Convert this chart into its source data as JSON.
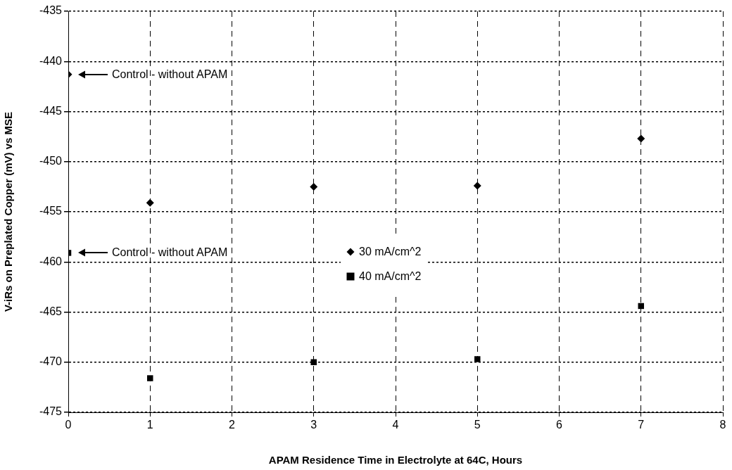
{
  "chart_data": {
    "type": "scatter",
    "xlabel": "APAM Residence Time in Electrolyte at 64C, Hours",
    "ylabel": "V-iRs on Preplated Copper (mV) vs MSE",
    "x": [
      0,
      1,
      3,
      5,
      7
    ],
    "series": [
      {
        "name": "30 mA/cm^2",
        "color": "#000000",
        "marker": "diamond",
        "values": [
          -441.3,
          -454.1,
          -452.5,
          -452.4,
          -447.7
        ]
      },
      {
        "name": "40 mA/cm^2",
        "color": "#000000",
        "marker": "square",
        "values": [
          -459.1,
          -471.6,
          -470.0,
          -469.7,
          -464.4
        ]
      }
    ],
    "annotations": [
      "Control - without APAM",
      "Control - without APAM"
    ],
    "xlim": [
      0,
      8
    ],
    "xticks": [
      0,
      1,
      2,
      3,
      4,
      5,
      6,
      7,
      8
    ],
    "ylim": [
      -475,
      -435
    ],
    "yticks": [
      -475,
      -470,
      -465,
      -460,
      -455,
      -450,
      -445,
      -440,
      -435
    ],
    "grid": true,
    "legend": "center"
  }
}
